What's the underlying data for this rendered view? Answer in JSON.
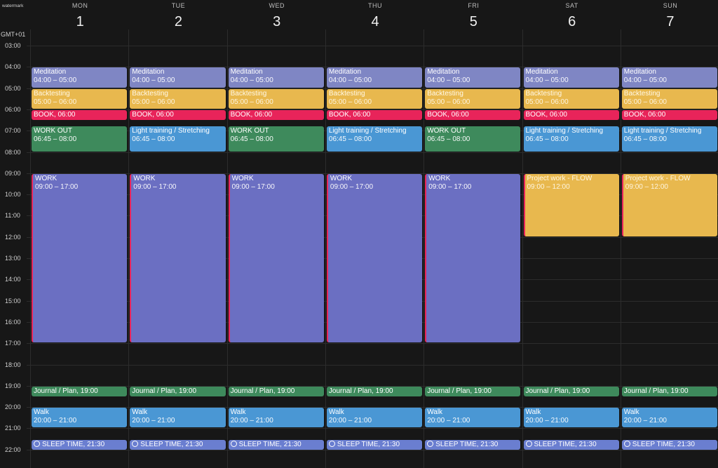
{
  "watermark": "watermark",
  "timezone": "GMT+01",
  "hours": [
    "03:00",
    "04:00",
    "05:00",
    "06:00",
    "07:00",
    "08:00",
    "09:00",
    "10:00",
    "11:00",
    "12:00",
    "13:00",
    "14:00",
    "15:00",
    "16:00",
    "17:00",
    "18:00",
    "19:00",
    "20:00",
    "21:00",
    "22:00"
  ],
  "days": [
    {
      "name": "MON",
      "num": "1"
    },
    {
      "name": "TUE",
      "num": "2"
    },
    {
      "name": "WED",
      "num": "3"
    },
    {
      "name": "THU",
      "num": "4"
    },
    {
      "name": "FRI",
      "num": "5"
    },
    {
      "name": "SAT",
      "num": "6"
    },
    {
      "name": "SUN",
      "num": "7"
    }
  ],
  "colors": {
    "meditation": "#7f86c4",
    "backtesting": "#e8b84e",
    "book": "#e8245a",
    "workout": "#3e8a5c",
    "light": "#4a97d4",
    "work": "#6b6fc2",
    "project": "#e8b84e",
    "journal": "#3e8a5c",
    "walk": "#4a97d4",
    "sleep": "#6a7ed0"
  },
  "events": [
    {
      "day": 0,
      "title": "Meditation",
      "time": "04:00 – 05:00",
      "start": 4.0,
      "end": 5.0,
      "color": "meditation",
      "style": "block",
      "bar": false
    },
    {
      "day": 0,
      "title": "Backtesting",
      "time": "05:00 – 06:00",
      "start": 5.0,
      "end": 6.0,
      "color": "backtesting",
      "style": "block",
      "bar": false
    },
    {
      "day": 0,
      "title": "BOOK, 06:00",
      "start": 6.0,
      "end": 6.5,
      "color": "book",
      "style": "inline",
      "bar": false
    },
    {
      "day": 0,
      "title": "WORK OUT",
      "time": "06:45 – 08:00",
      "start": 6.75,
      "end": 8.0,
      "color": "workout",
      "style": "block",
      "bar": false
    },
    {
      "day": 0,
      "title": "WORK",
      "time": "09:00 – 17:00",
      "start": 9.0,
      "end": 17.0,
      "color": "work",
      "style": "block",
      "bar": true
    },
    {
      "day": 0,
      "title": "Journal / Plan, 19:00",
      "start": 19.0,
      "end": 19.5,
      "color": "journal",
      "style": "inline",
      "bar": false
    },
    {
      "day": 0,
      "title": "Walk",
      "time": "20:00 – 21:00",
      "start": 20.0,
      "end": 21.0,
      "color": "walk",
      "style": "block",
      "bar": false
    },
    {
      "day": 0,
      "title": "SLEEP TIME, 21:30",
      "start": 21.5,
      "end": 22.0,
      "color": "sleep",
      "style": "inline",
      "bar": false,
      "circle": true
    },
    {
      "day": 1,
      "title": "Meditation",
      "time": "04:00 – 05:00",
      "start": 4.0,
      "end": 5.0,
      "color": "meditation",
      "style": "block",
      "bar": false
    },
    {
      "day": 1,
      "title": "Backtesting",
      "time": "05:00 – 06:00",
      "start": 5.0,
      "end": 6.0,
      "color": "backtesting",
      "style": "block",
      "bar": false
    },
    {
      "day": 1,
      "title": "BOOK, 06:00",
      "start": 6.0,
      "end": 6.5,
      "color": "book",
      "style": "inline",
      "bar": false
    },
    {
      "day": 1,
      "title": "Light training / Stretching",
      "time": "06:45 – 08:00",
      "start": 6.75,
      "end": 8.0,
      "color": "light",
      "style": "block",
      "bar": false
    },
    {
      "day": 1,
      "title": "WORK",
      "time": "09:00 – 17:00",
      "start": 9.0,
      "end": 17.0,
      "color": "work",
      "style": "block",
      "bar": true
    },
    {
      "day": 1,
      "title": "Journal / Plan, 19:00",
      "start": 19.0,
      "end": 19.5,
      "color": "journal",
      "style": "inline",
      "bar": false
    },
    {
      "day": 1,
      "title": "Walk",
      "time": "20:00 – 21:00",
      "start": 20.0,
      "end": 21.0,
      "color": "walk",
      "style": "block",
      "bar": false
    },
    {
      "day": 1,
      "title": "SLEEP TIME, 21:30",
      "start": 21.5,
      "end": 22.0,
      "color": "sleep",
      "style": "inline",
      "bar": false,
      "circle": true
    },
    {
      "day": 2,
      "title": "Meditation",
      "time": "04:00 – 05:00",
      "start": 4.0,
      "end": 5.0,
      "color": "meditation",
      "style": "block",
      "bar": false
    },
    {
      "day": 2,
      "title": "Backtesting",
      "time": "05:00 – 06:00",
      "start": 5.0,
      "end": 6.0,
      "color": "backtesting",
      "style": "block",
      "bar": false
    },
    {
      "day": 2,
      "title": "BOOK, 06:00",
      "start": 6.0,
      "end": 6.5,
      "color": "book",
      "style": "inline",
      "bar": false
    },
    {
      "day": 2,
      "title": "WORK OUT",
      "time": "06:45 – 08:00",
      "start": 6.75,
      "end": 8.0,
      "color": "workout",
      "style": "block",
      "bar": false
    },
    {
      "day": 2,
      "title": "WORK",
      "time": "09:00 – 17:00",
      "start": 9.0,
      "end": 17.0,
      "color": "work",
      "style": "block",
      "bar": true
    },
    {
      "day": 2,
      "title": "Journal / Plan, 19:00",
      "start": 19.0,
      "end": 19.5,
      "color": "journal",
      "style": "inline",
      "bar": false
    },
    {
      "day": 2,
      "title": "Walk",
      "time": "20:00 – 21:00",
      "start": 20.0,
      "end": 21.0,
      "color": "walk",
      "style": "block",
      "bar": false
    },
    {
      "day": 2,
      "title": "SLEEP TIME, 21:30",
      "start": 21.5,
      "end": 22.0,
      "color": "sleep",
      "style": "inline",
      "bar": false,
      "circle": true
    },
    {
      "day": 3,
      "title": "Meditation",
      "time": "04:00 – 05:00",
      "start": 4.0,
      "end": 5.0,
      "color": "meditation",
      "style": "block",
      "bar": false
    },
    {
      "day": 3,
      "title": "Backtesting",
      "time": "05:00 – 06:00",
      "start": 5.0,
      "end": 6.0,
      "color": "backtesting",
      "style": "block",
      "bar": false
    },
    {
      "day": 3,
      "title": "BOOK, 06:00",
      "start": 6.0,
      "end": 6.5,
      "color": "book",
      "style": "inline",
      "bar": false
    },
    {
      "day": 3,
      "title": "Light training / Stretching",
      "time": "06:45 – 08:00",
      "start": 6.75,
      "end": 8.0,
      "color": "light",
      "style": "block",
      "bar": false
    },
    {
      "day": 3,
      "title": "WORK",
      "time": "09:00 – 17:00",
      "start": 9.0,
      "end": 17.0,
      "color": "work",
      "style": "block",
      "bar": true
    },
    {
      "day": 3,
      "title": "Journal / Plan, 19:00",
      "start": 19.0,
      "end": 19.5,
      "color": "journal",
      "style": "inline",
      "bar": false
    },
    {
      "day": 3,
      "title": "Walk",
      "time": "20:00 – 21:00",
      "start": 20.0,
      "end": 21.0,
      "color": "walk",
      "style": "block",
      "bar": false
    },
    {
      "day": 3,
      "title": "SLEEP TIME, 21:30",
      "start": 21.5,
      "end": 22.0,
      "color": "sleep",
      "style": "inline",
      "bar": false,
      "circle": true
    },
    {
      "day": 4,
      "title": "Meditation",
      "time": "04:00 – 05:00",
      "start": 4.0,
      "end": 5.0,
      "color": "meditation",
      "style": "block",
      "bar": false
    },
    {
      "day": 4,
      "title": "Backtesting",
      "time": "05:00 – 06:00",
      "start": 5.0,
      "end": 6.0,
      "color": "backtesting",
      "style": "block",
      "bar": false
    },
    {
      "day": 4,
      "title": "BOOK, 06:00",
      "start": 6.0,
      "end": 6.5,
      "color": "book",
      "style": "inline",
      "bar": false
    },
    {
      "day": 4,
      "title": "WORK OUT",
      "time": "06:45 – 08:00",
      "start": 6.75,
      "end": 8.0,
      "color": "workout",
      "style": "block",
      "bar": false
    },
    {
      "day": 4,
      "title": "WORK",
      "time": "09:00 – 17:00",
      "start": 9.0,
      "end": 17.0,
      "color": "work",
      "style": "block",
      "bar": true
    },
    {
      "day": 4,
      "title": "Journal / Plan, 19:00",
      "start": 19.0,
      "end": 19.5,
      "color": "journal",
      "style": "inline",
      "bar": false
    },
    {
      "day": 4,
      "title": "Walk",
      "time": "20:00 – 21:00",
      "start": 20.0,
      "end": 21.0,
      "color": "walk",
      "style": "block",
      "bar": false
    },
    {
      "day": 4,
      "title": "SLEEP TIME, 21:30",
      "start": 21.5,
      "end": 22.0,
      "color": "sleep",
      "style": "inline",
      "bar": false,
      "circle": true
    },
    {
      "day": 5,
      "title": "Meditation",
      "time": "04:00 – 05:00",
      "start": 4.0,
      "end": 5.0,
      "color": "meditation",
      "style": "block",
      "bar": false
    },
    {
      "day": 5,
      "title": "Backtesting",
      "time": "05:00 – 06:00",
      "start": 5.0,
      "end": 6.0,
      "color": "backtesting",
      "style": "block",
      "bar": false
    },
    {
      "day": 5,
      "title": "BOOK, 06:00",
      "start": 6.0,
      "end": 6.5,
      "color": "book",
      "style": "inline",
      "bar": false
    },
    {
      "day": 5,
      "title": "Light training / Stretching",
      "time": "06:45 – 08:00",
      "start": 6.75,
      "end": 8.0,
      "color": "light",
      "style": "block",
      "bar": false
    },
    {
      "day": 5,
      "title": "Project work - FLOW",
      "time": "09:00 – 12:00",
      "start": 9.0,
      "end": 12.0,
      "color": "project",
      "style": "block",
      "bar": true
    },
    {
      "day": 5,
      "title": "Journal / Plan, 19:00",
      "start": 19.0,
      "end": 19.5,
      "color": "journal",
      "style": "inline",
      "bar": false
    },
    {
      "day": 5,
      "title": "Walk",
      "time": "20:00 – 21:00",
      "start": 20.0,
      "end": 21.0,
      "color": "walk",
      "style": "block",
      "bar": false
    },
    {
      "day": 5,
      "title": "SLEEP TIME, 21:30",
      "start": 21.5,
      "end": 22.0,
      "color": "sleep",
      "style": "inline",
      "bar": false,
      "circle": true
    },
    {
      "day": 6,
      "title": "Meditation",
      "time": "04:00 – 05:00",
      "start": 4.0,
      "end": 5.0,
      "color": "meditation",
      "style": "block",
      "bar": false
    },
    {
      "day": 6,
      "title": "Backtesting",
      "time": "05:00 – 06:00",
      "start": 5.0,
      "end": 6.0,
      "color": "backtesting",
      "style": "block",
      "bar": false
    },
    {
      "day": 6,
      "title": "BOOK, 06:00",
      "start": 6.0,
      "end": 6.5,
      "color": "book",
      "style": "inline",
      "bar": false
    },
    {
      "day": 6,
      "title": "Light training / Stretching",
      "time": "06:45 – 08:00",
      "start": 6.75,
      "end": 8.0,
      "color": "light",
      "style": "block",
      "bar": false
    },
    {
      "day": 6,
      "title": "Project work - FLOW",
      "time": "09:00 – 12:00",
      "start": 9.0,
      "end": 12.0,
      "color": "project",
      "style": "block",
      "bar": true
    },
    {
      "day": 6,
      "title": "Journal / Plan, 19:00",
      "start": 19.0,
      "end": 19.5,
      "color": "journal",
      "style": "inline",
      "bar": false
    },
    {
      "day": 6,
      "title": "Walk",
      "time": "20:00 – 21:00",
      "start": 20.0,
      "end": 21.0,
      "color": "walk",
      "style": "block",
      "bar": false
    },
    {
      "day": 6,
      "title": "SLEEP TIME, 21:30",
      "start": 21.5,
      "end": 22.0,
      "color": "sleep",
      "style": "inline",
      "bar": false,
      "circle": true
    }
  ]
}
